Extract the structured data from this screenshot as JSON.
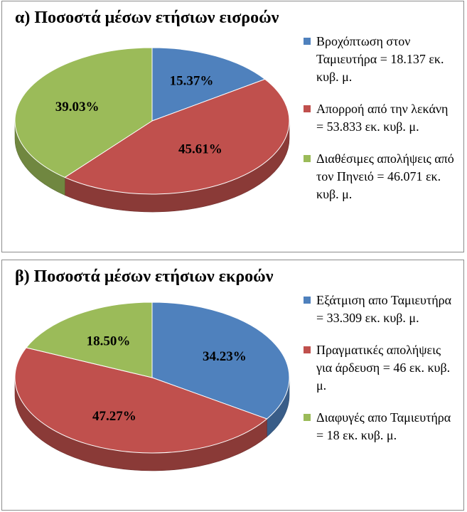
{
  "colors": {
    "blue": "#4f81bd",
    "red": "#c0504d",
    "green": "#9bbb59"
  },
  "chart_data": [
    {
      "type": "pie",
      "title": "α) Ποσοστά μέσων ετήσιων εισροών",
      "legend_position": "right",
      "categories": [
        "Βροχόπτωση στον Ταμιευτήρα = 18.137 εκ. κυβ. μ.",
        "Απορροή από την λεκάνη = 53.833 εκ. κυβ. μ.",
        "Διαθέσιμες απολήψεις από τον Πηνειό = 46.071 εκ. κυβ. μ."
      ],
      "values": [
        15.37,
        45.61,
        39.03
      ],
      "data_labels": [
        "15.37%",
        "45.61%",
        "39.03%"
      ],
      "colors": [
        "#4f81bd",
        "#c0504d",
        "#9bbb59"
      ]
    },
    {
      "type": "pie",
      "title": "β) Ποσοστά μέσων ετήσιων εκροών",
      "legend_position": "right",
      "categories": [
        "Εξάτμιση απο Ταμιευτήρα = 33.309 εκ. κυβ. μ.",
        "Πραγματικές απολήψεις για άρδευση = 46 εκ. κυβ. μ.",
        "Διαφυγές απο Ταμιευτήρα = 18 εκ. κυβ. μ."
      ],
      "values": [
        34.23,
        47.27,
        18.5
      ],
      "data_labels": [
        "34.23%",
        "47.27%",
        "18.50%"
      ],
      "colors": [
        "#4f81bd",
        "#c0504d",
        "#9bbb59"
      ]
    }
  ]
}
